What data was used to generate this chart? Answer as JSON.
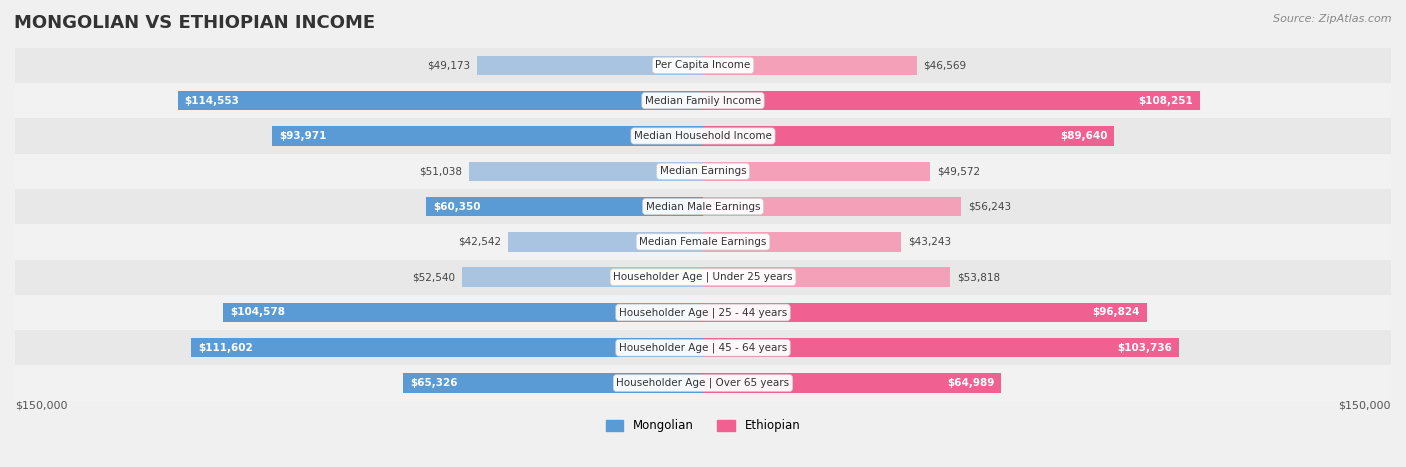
{
  "title": "MONGOLIAN VS ETHIOPIAN INCOME",
  "source": "Source: ZipAtlas.com",
  "categories": [
    "Per Capita Income",
    "Median Family Income",
    "Median Household Income",
    "Median Earnings",
    "Median Male Earnings",
    "Median Female Earnings",
    "Householder Age | Under 25 years",
    "Householder Age | 25 - 44 years",
    "Householder Age | 45 - 64 years",
    "Householder Age | Over 65 years"
  ],
  "mongolian_values": [
    49173,
    114553,
    93971,
    51038,
    60350,
    42542,
    52540,
    104578,
    111602,
    65326
  ],
  "ethiopian_values": [
    46569,
    108251,
    89640,
    49572,
    56243,
    43243,
    53818,
    96824,
    103736,
    64989
  ],
  "mongolian_color": "#a8c4e0",
  "ethiopian_color": "#f4a0b8",
  "mongolian_strong_color": "#5b9bd5",
  "ethiopian_strong_color": "#f06090",
  "max_value": 150000,
  "background_color": "#f5f5f5",
  "row_bg_color": "#eeeeee",
  "row_bg_alt": "#f9f9f9",
  "label_bg_color": "#ffffff",
  "legend_mongolian": "Mongolian",
  "legend_ethiopian": "Ethiopian",
  "xlabel_left": "$150,000",
  "xlabel_right": "$150,000"
}
